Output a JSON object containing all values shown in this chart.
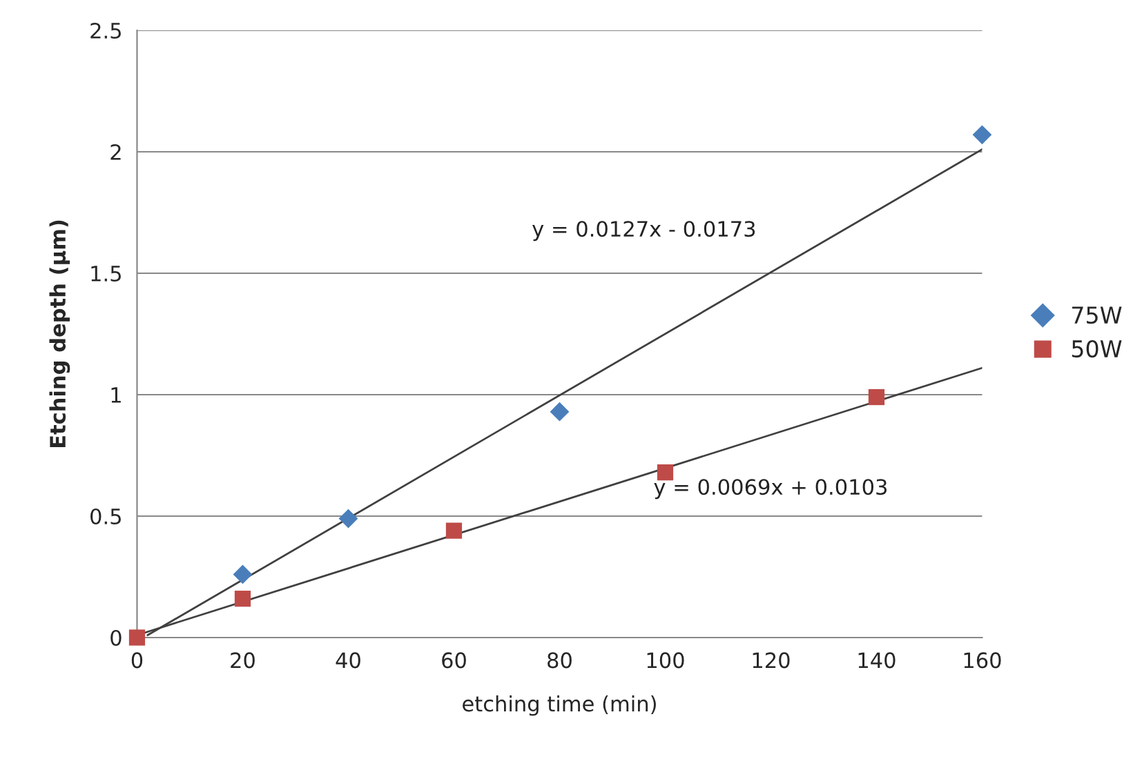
{
  "chart_data": {
    "type": "scatter",
    "xlabel": "etching time (min)",
    "ylabel": "Etching depth (µm)",
    "series": [
      {
        "name": "75W",
        "color": "#4a7ebb",
        "marker": "diamond",
        "x": [
          20,
          40,
          80,
          160
        ],
        "values": [
          0.26,
          0.49,
          0.93,
          2.07
        ]
      },
      {
        "name": "50W",
        "color": "#be4b48",
        "marker": "square",
        "x": [
          0,
          20,
          60,
          100,
          140
        ],
        "values": [
          0,
          0.16,
          0.44,
          0.68,
          0.99
        ]
      },
      {
        "type": "line",
        "color": "#404040",
        "x": [
          2,
          160
        ],
        "values": [
          0.01,
          2.01
        ]
      },
      {
        "type": "line",
        "color": "#404040",
        "x": [
          0,
          160
        ],
        "values": [
          0.01,
          1.11
        ]
      }
    ],
    "annotations": [
      "y = 0.0127x - 0.0173",
      "y = 0.0069x + 0.0103"
    ],
    "xlim": [
      0,
      160
    ],
    "xticks": [
      0,
      20,
      40,
      60,
      80,
      100,
      120,
      140,
      160
    ],
    "ylim": [
      0,
      2.5
    ],
    "yticks": [
      0,
      0.5,
      1,
      1.5,
      2,
      2.5
    ],
    "grid": "y",
    "legend": "right"
  }
}
